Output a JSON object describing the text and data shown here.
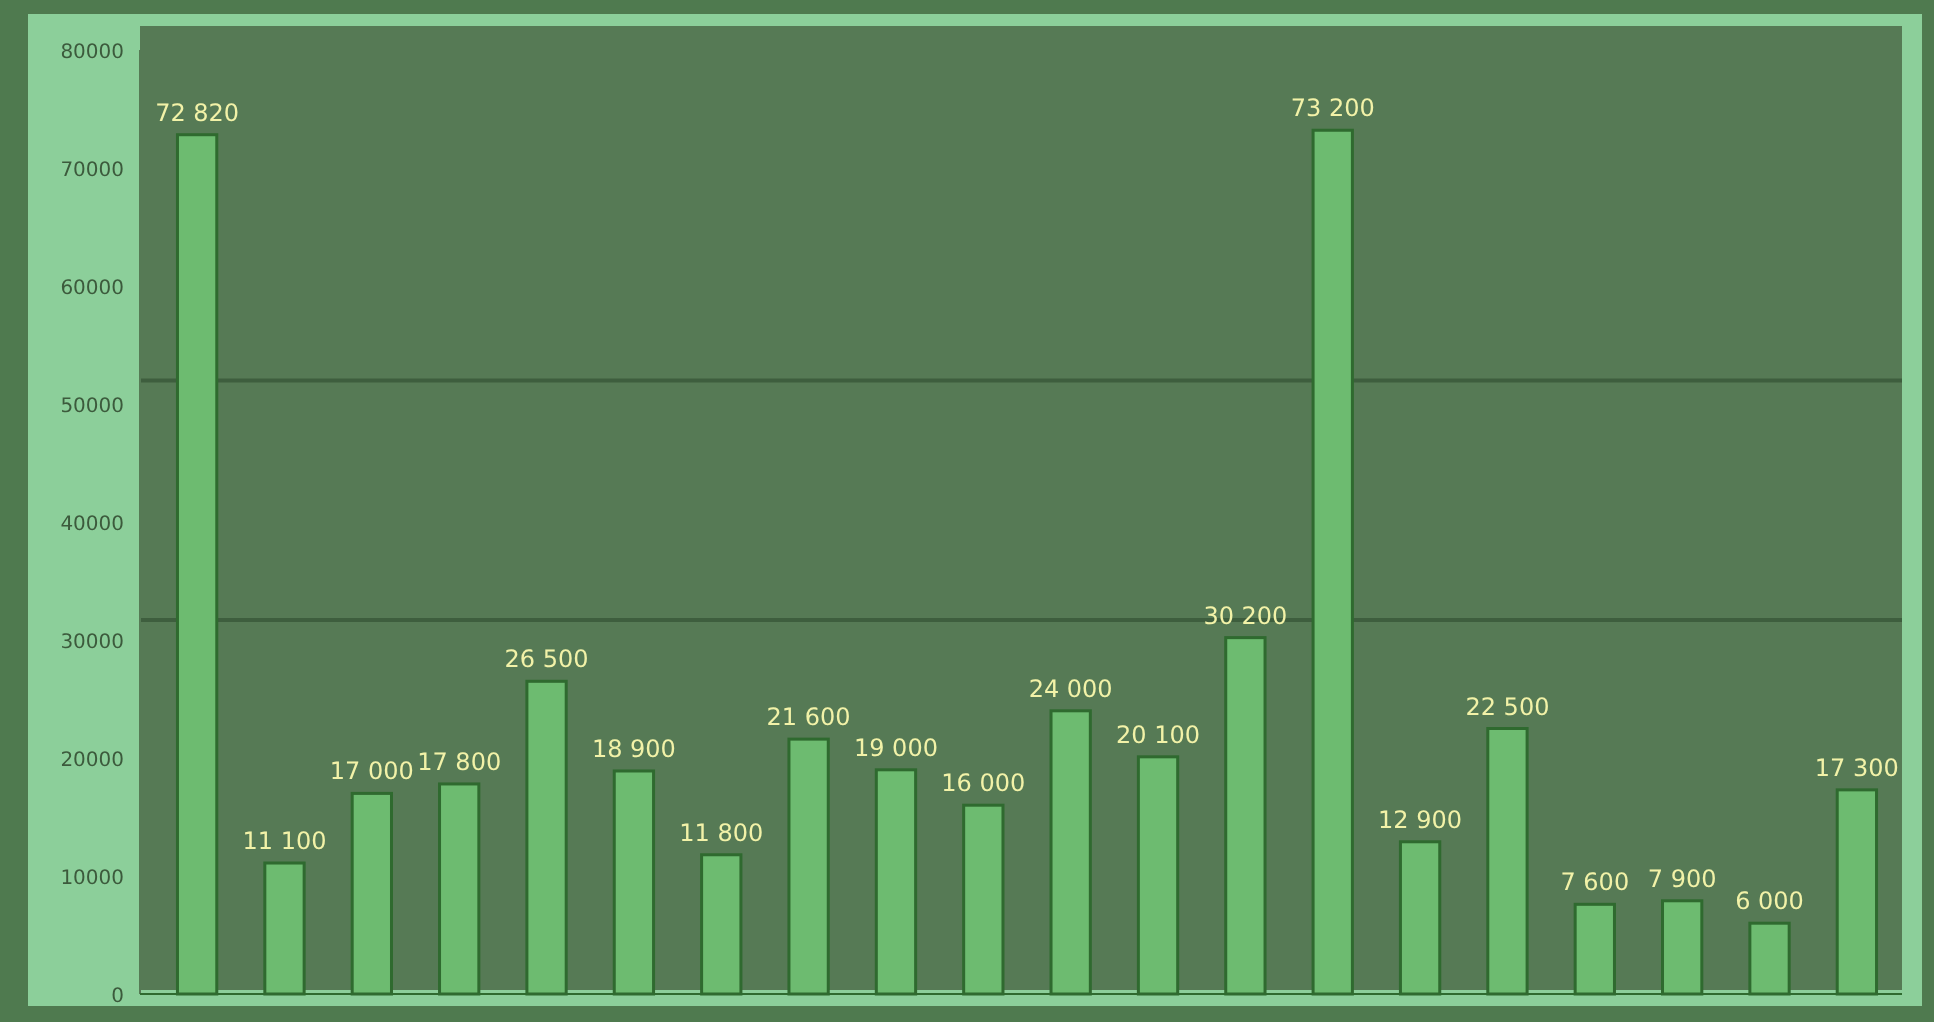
{
  "chart_data": {
    "type": "bar",
    "categories": [
      null,
      null,
      null,
      null,
      null,
      null,
      null,
      null,
      null,
      null,
      null,
      null,
      null,
      null,
      null,
      null,
      null,
      null,
      null,
      null
    ],
    "values": [
      72820,
      11100,
      17000,
      17800,
      26500,
      18900,
      11800,
      21600,
      19000,
      16000,
      24000,
      20100,
      30200,
      73200,
      12900,
      22500,
      7600,
      7900,
      6000,
      17300
    ],
    "value_labels": [
      "72 820",
      "11 100",
      "17 000",
      "17 800",
      "26 500",
      "18 900",
      "11 800",
      "21 600",
      "19 000",
      "16 000",
      "24 000",
      "20 100",
      "30 200",
      "73 200",
      "12 900",
      "22 500",
      "7 600",
      "7 900",
      "6 000",
      "17 300"
    ],
    "color": "#6dbb70",
    "ylim": [
      0,
      80000
    ],
    "yticks": [
      0,
      10000,
      20000,
      30000,
      40000,
      50000,
      60000,
      70000,
      80000
    ],
    "ref_lines": [
      {
        "axis": "y",
        "value": 52000,
        "color": "#3e5e3e"
      },
      {
        "axis": "y",
        "value": 31700,
        "color": "#3e5e3e"
      }
    ],
    "grid": false
  }
}
